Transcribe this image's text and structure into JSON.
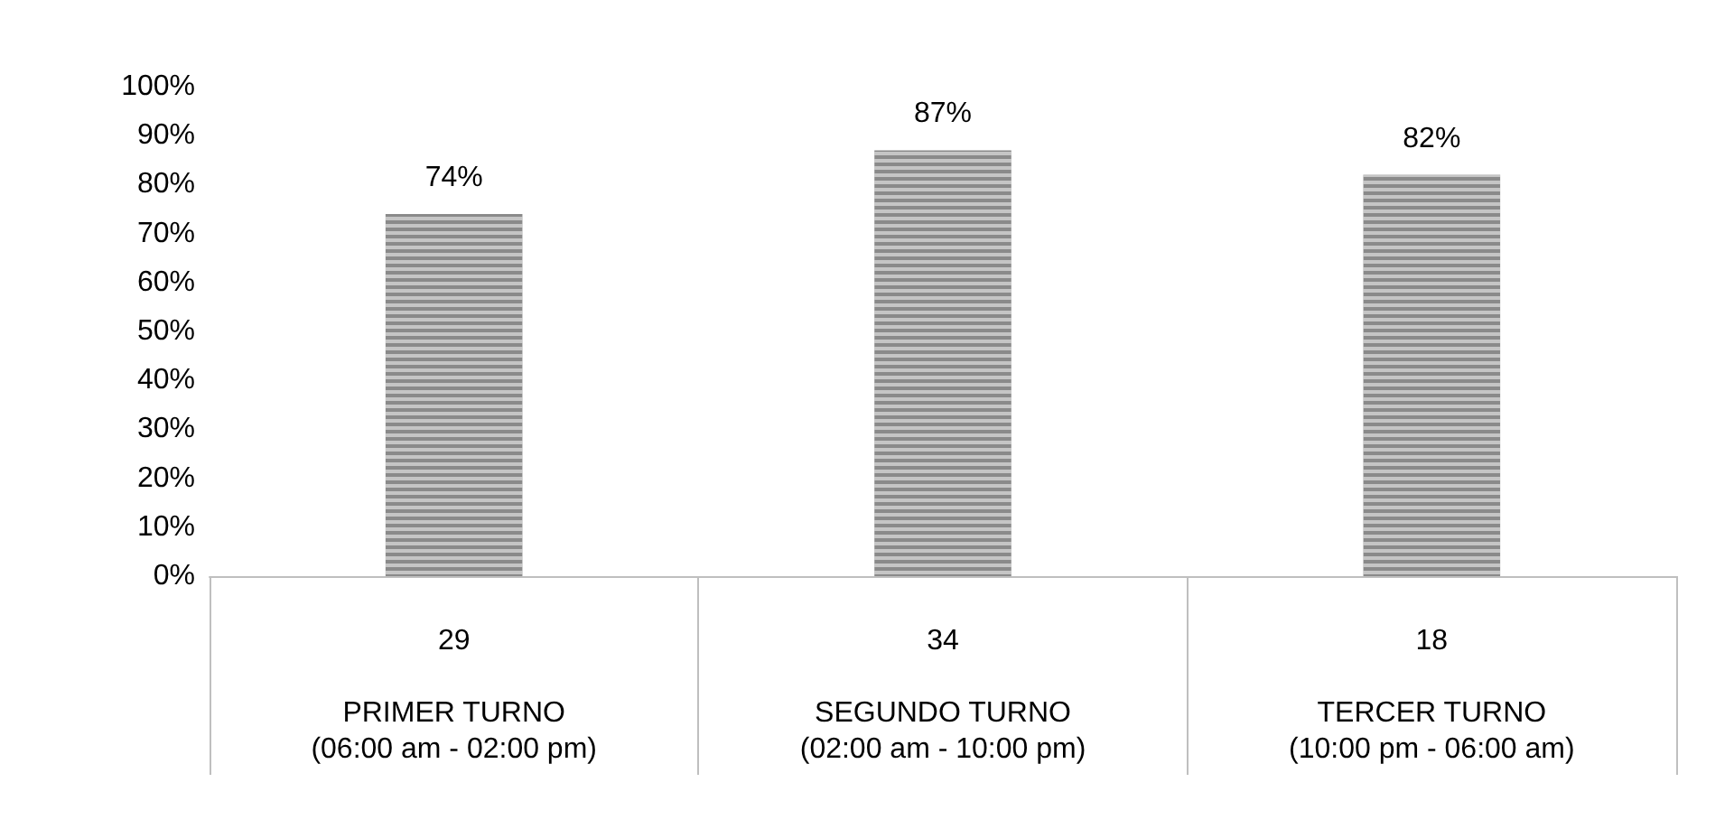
{
  "chart_data": {
    "type": "bar",
    "categories": [
      "29\n\nPRIMER TURNO\n(06:00 am - 02:00 pm)",
      "34\n\nSEGUNDO TURNO\n(02:00 am - 10:00 pm)",
      "18\n\nTERCER TURNO\n(10:00 pm - 06:00 am)"
    ],
    "values": [
      74,
      87,
      82
    ],
    "value_labels": [
      "74%",
      "87%",
      "82%"
    ],
    "color": "#8a8a8a",
    "ylim": [
      0,
      100
    ],
    "yticks": [
      {
        "value": 0,
        "label": "0%"
      },
      {
        "value": 10,
        "label": "10%"
      },
      {
        "value": 20,
        "label": "20%"
      },
      {
        "value": 30,
        "label": "30%"
      },
      {
        "value": 40,
        "label": "40%"
      },
      {
        "value": 50,
        "label": "50%"
      },
      {
        "value": 60,
        "label": "60%"
      },
      {
        "value": 70,
        "label": "70%"
      },
      {
        "value": 80,
        "label": "80%"
      },
      {
        "value": 90,
        "label": "90%"
      },
      {
        "value": 100,
        "label": "100%"
      }
    ]
  }
}
